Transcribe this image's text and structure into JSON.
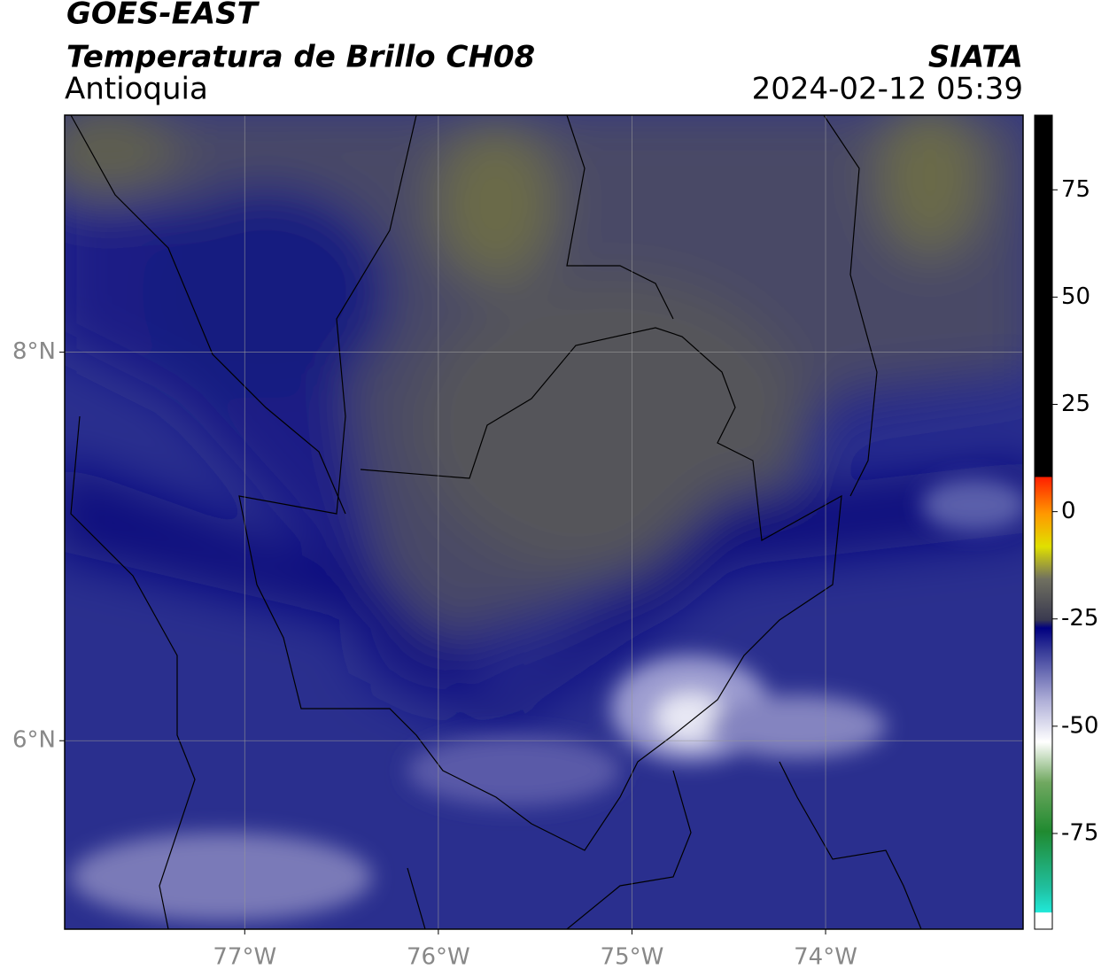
{
  "title": "GOES-EAST",
  "subtitle": "Temperatura de Brillo CH08",
  "region": "Antioquia",
  "source": "SIATA",
  "timestamp": "2024-02-12 05:39",
  "map": {
    "xlim": [
      -77.93,
      -72.98
    ],
    "ylim": [
      5.03,
      9.22
    ],
    "xticks": [
      {
        "value": -77,
        "label": "77°W"
      },
      {
        "value": -76,
        "label": "76°W"
      },
      {
        "value": -75,
        "label": "75°W"
      },
      {
        "value": -74,
        "label": "74°W"
      }
    ],
    "yticks": [
      {
        "value": 6,
        "label": "6°N"
      },
      {
        "value": 8,
        "label": "8°N"
      }
    ],
    "grid": true
  },
  "colorbar": {
    "lim": [
      -97.3,
      92.4
    ],
    "ticks": [
      75,
      50,
      25,
      0,
      -25,
      -50,
      -75
    ]
  }
}
